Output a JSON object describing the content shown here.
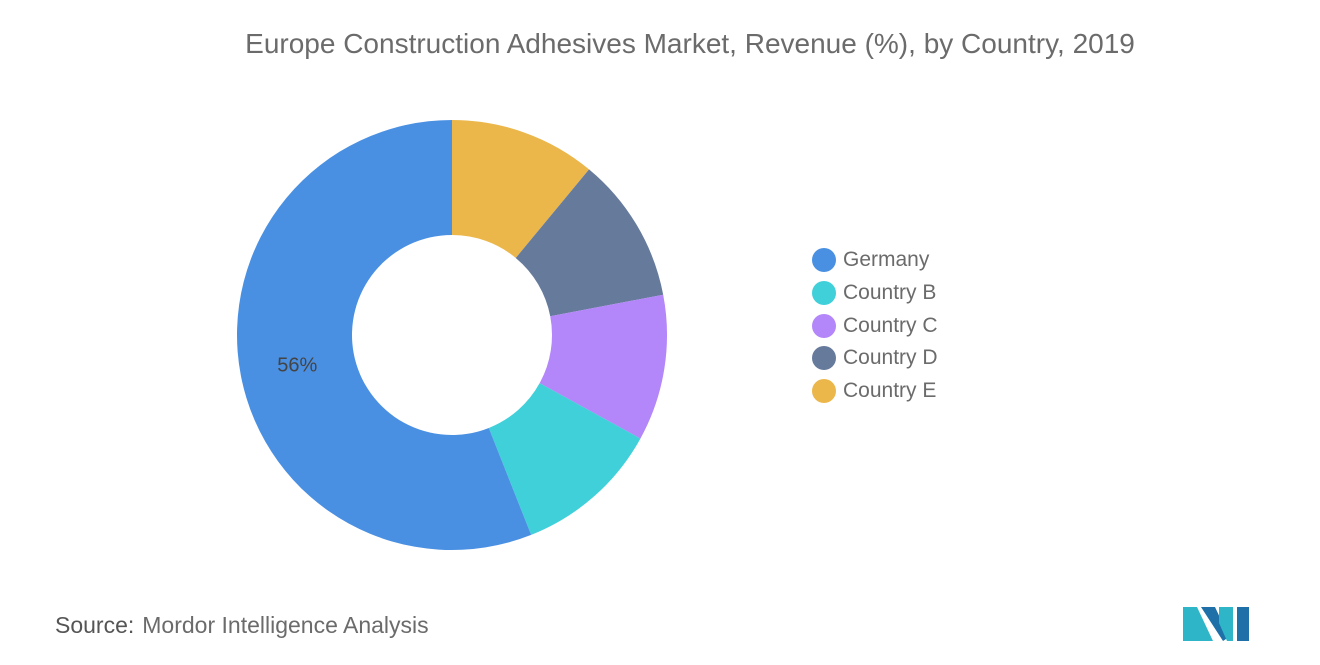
{
  "chart_data": {
    "type": "pie",
    "variant": "donut",
    "title": "Europe Construction Adhesives Market, Revenue (%), by Country, 2019",
    "categories": [
      "Germany",
      "Country B",
      "Country C",
      "Country D",
      "Country E"
    ],
    "values": [
      56,
      11,
      11,
      11,
      11
    ],
    "data_labels": {
      "Germany": "56%"
    },
    "colors": [
      "#4a90e2",
      "#3fd0da",
      "#b386f9",
      "#667a9c",
      "#ecb74a"
    ],
    "legend_placement": "right"
  },
  "source": {
    "label": "Source:",
    "text": "Mordor Intelligence Analysis"
  },
  "logo": {
    "name": "mordor-intelligence-logo"
  }
}
